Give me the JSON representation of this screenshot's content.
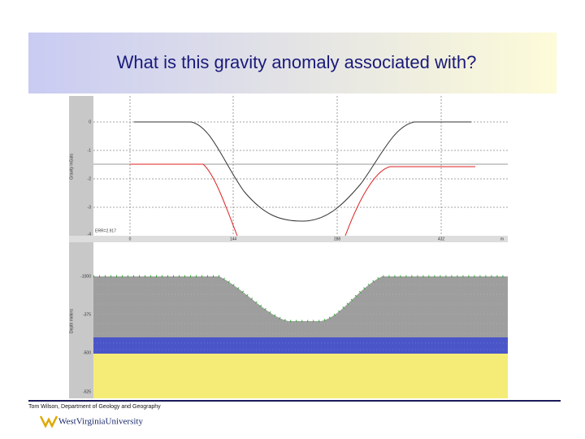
{
  "header": {
    "title": "What is this gravity anomaly associated with?"
  },
  "screenshot": {
    "gravity_panel": {
      "axis_title": "Gravity mGals",
      "y_labels": [
        "0",
        "-1",
        "-2",
        "-3",
        "-4"
      ],
      "error_label": "ERR=2.917",
      "x_labels": [
        "0",
        "144",
        "288",
        "432",
        "m"
      ]
    },
    "depth_panel": {
      "axis_title": "Depth meters",
      "y_labels": [
        "-1000",
        "-375",
        "-500",
        "-525"
      ]
    }
  },
  "footer": {
    "credit": "Tom Wilson, Department of Geology and Geography",
    "logo": "WestVirginiaUniversity"
  }
}
